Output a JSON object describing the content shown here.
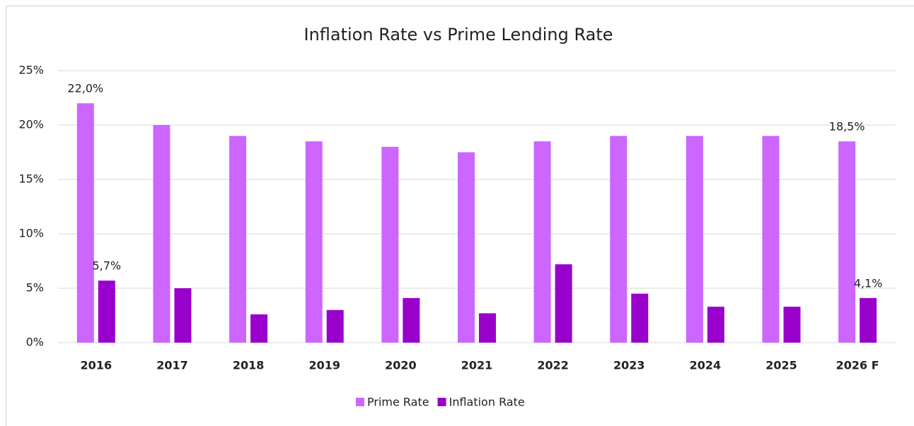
{
  "chart_data": {
    "type": "bar",
    "title": "Inflation Rate vs Prime Lending Rate",
    "categories": [
      "2016",
      "2017",
      "2018",
      "2019",
      "2020",
      "2021",
      "2022",
      "2023",
      "2024",
      "2025",
      "2026 F"
    ],
    "series": [
      {
        "name": "Prime Rate",
        "color": "#cc66ff",
        "values": [
          22.0,
          20.0,
          19.0,
          18.5,
          18.0,
          17.5,
          18.5,
          19.0,
          19.0,
          19.0,
          18.5
        ],
        "value_labels": [
          "22,0%",
          null,
          null,
          null,
          null,
          null,
          null,
          null,
          null,
          null,
          "18,5%"
        ]
      },
      {
        "name": "Inflation Rate",
        "color": "#9900cc",
        "values": [
          5.7,
          5.0,
          2.6,
          3.0,
          4.1,
          2.7,
          7.2,
          4.5,
          3.3,
          3.3,
          4.1
        ],
        "value_labels": [
          "5,7%",
          null,
          null,
          null,
          null,
          null,
          null,
          null,
          null,
          null,
          "4,1%"
        ]
      }
    ],
    "ylim": [
      0,
      25
    ],
    "yticks": [
      {
        "value": 0,
        "label": "0%"
      },
      {
        "value": 5,
        "label": "5%"
      },
      {
        "value": 10,
        "label": "10%"
      },
      {
        "value": 15,
        "label": "15%"
      },
      {
        "value": 20,
        "label": "20%"
      },
      {
        "value": 25,
        "label": "25%"
      }
    ],
    "grid": true,
    "legend": "bottom"
  }
}
